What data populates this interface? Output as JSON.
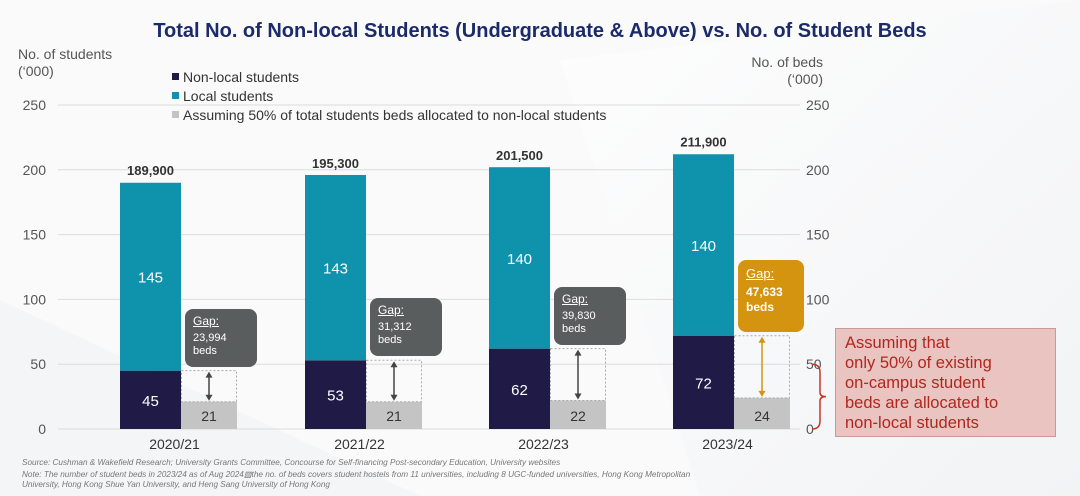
{
  "title": "Total No. of Non-local Students (Undergraduate & Above) vs. No. of Student Beds",
  "left_axis_title": [
    "No. of students",
    "(‘000)"
  ],
  "right_axis_title": [
    "No. of beds",
    "(‘000)"
  ],
  "chart_data": {
    "type": "bar",
    "title": "Total No. of Non-local Students (Undergraduate & Above) vs. No. of Student Beds",
    "categories": [
      "2020/21",
      "2021/22",
      "2022/23",
      "2023/24"
    ],
    "series": [
      {
        "name": "Non-local students",
        "values": [
          45,
          53,
          62,
          72
        ],
        "color": "#201a46"
      },
      {
        "name": "Local students",
        "values": [
          145,
          143,
          140,
          140
        ],
        "color": "#0f93ac"
      },
      {
        "name": "Assuming 50% of total students beds allocated to non-local students",
        "values": [
          21,
          21,
          22,
          24
        ],
        "color": "#c4c4c4"
      }
    ],
    "totals": [
      "189,900",
      "195,300",
      "201,500",
      "211,900"
    ],
    "total_values": [
      189.9,
      195.3,
      201.5,
      211.9
    ],
    "gaps": [
      "23,994",
      "31,312",
      "39,830",
      "47,633"
    ],
    "gap_values": [
      23.994,
      31.312,
      39.83,
      47.633
    ],
    "gap_prefix": "Gap:",
    "gap_unit": "beds",
    "ylim": [
      0,
      250
    ],
    "y_ticks": [
      "0",
      "50",
      "100",
      "150",
      "200",
      "250"
    ],
    "grid": true,
    "legend_position": "top-left"
  },
  "note_box": [
    "Assuming that",
    "only 50% of existing",
    "on-campus student",
    "beds are allocated to",
    "non-local students"
  ],
  "footer": {
    "source": "Source: Cushman & Wakefield Research; University Grants Committee, Concourse for Self-financing Post-secondary Education, University websites",
    "note1": "Note: The number of student beds in 2023/24 as of Aug 2024▨the no. of beds covers student hostels from 11 universities, including 8 UGC-funded universities, Hong Kong Metropolitan",
    "note2": "University, Hong Kong Shue Yan University, and Heng Sang University of Hong Kong"
  },
  "colors": {
    "title": "#1b2a6b",
    "nonlocal": "#201a46",
    "local": "#0f93ac",
    "beds": "#c4c4c4",
    "callout_dark": "#5a5d5d",
    "callout_gold": "#d4940f",
    "note_text": "#b0271e",
    "brace": "#c0392b"
  }
}
